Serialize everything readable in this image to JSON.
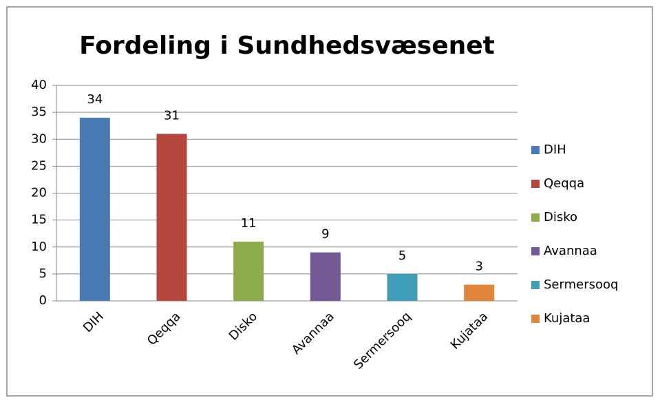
{
  "chart_data": {
    "type": "bar",
    "title": "Fordeling i Sundhedsvæsenet",
    "categories": [
      "DIH",
      "Qeqqa",
      "Disko",
      "Avannaa",
      "Sermersooq",
      "Kujataa"
    ],
    "values": [
      34,
      31,
      11,
      9,
      5,
      3
    ],
    "colors": [
      "#4a7ab4",
      "#b5473f",
      "#8cab4b",
      "#735995",
      "#3f9db8",
      "#e0843a"
    ],
    "ylim": [
      0,
      40
    ],
    "yticks": [
      0,
      5,
      10,
      15,
      20,
      25,
      30,
      35,
      40
    ],
    "grid": true,
    "legend": "right"
  }
}
